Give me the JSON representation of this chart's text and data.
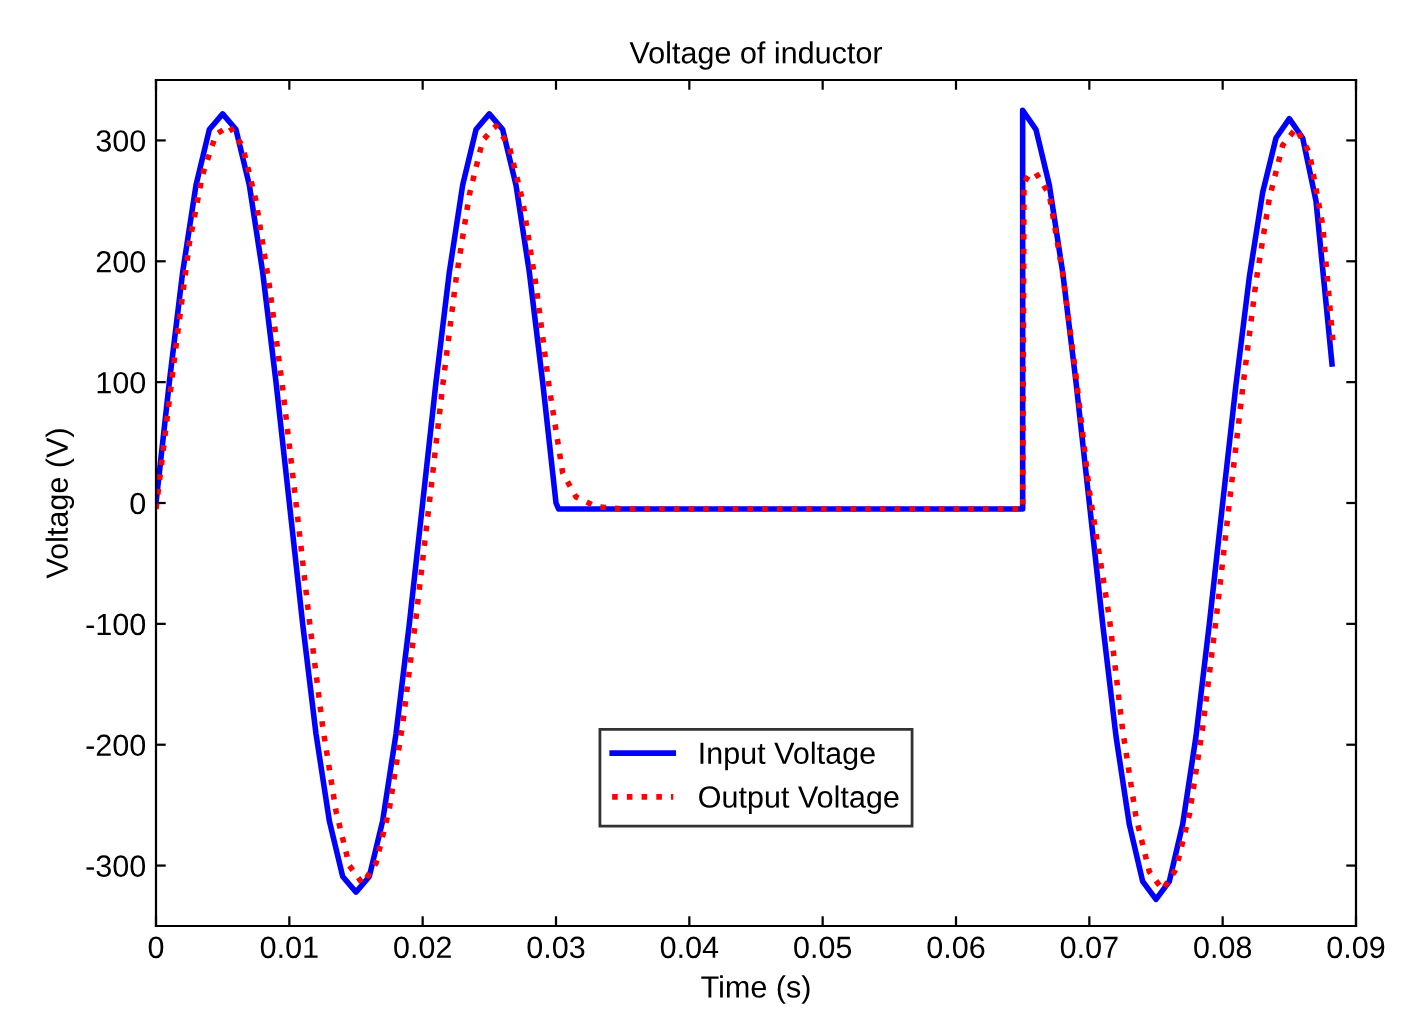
{
  "chart_data": {
    "type": "line",
    "title": "Voltage of inductor",
    "xlabel": "Time (s)",
    "ylabel": "Voltage (V)",
    "xlim": [
      0,
      0.09
    ],
    "ylim": [
      -350,
      350
    ],
    "xticks": [
      0,
      0.01,
      0.02,
      0.03,
      0.04,
      0.05,
      0.06,
      0.07,
      0.08,
      0.09
    ],
    "yticks": [
      -300,
      -200,
      -100,
      0,
      100,
      200,
      300
    ],
    "grid": false,
    "legend": "bottom",
    "series": [
      {
        "name": "Input Voltage",
        "color": "#0000ff",
        "line_style": "solid",
        "x": [
          0,
          0.001,
          0.002,
          0.003,
          0.004,
          0.005,
          0.006,
          0.007,
          0.008,
          0.009,
          0.01,
          0.011,
          0.012,
          0.013,
          0.014,
          0.015,
          0.016,
          0.017,
          0.018,
          0.019,
          0.02,
          0.021,
          0.022,
          0.023,
          0.024,
          0.025,
          0.026,
          0.027,
          0.028,
          0.029,
          0.03,
          0.0302,
          0.065,
          0.065,
          0.066,
          0.067,
          0.068,
          0.069,
          0.07,
          0.071,
          0.072,
          0.073,
          0.074,
          0.075,
          0.076,
          0.077,
          0.078,
          0.079,
          0.08,
          0.081,
          0.082,
          0.083,
          0.084,
          0.085,
          0.086,
          0.087,
          0.0882
        ],
        "values": [
          0,
          100,
          191,
          263,
          309,
          322,
          309,
          263,
          191,
          100,
          0,
          -100,
          -191,
          -263,
          -309,
          -322,
          -309,
          -263,
          -191,
          -100,
          0,
          100,
          191,
          263,
          309,
          322,
          309,
          263,
          191,
          100,
          0,
          -5,
          -5,
          325,
          309,
          263,
          191,
          100,
          0,
          -100,
          -193,
          -266,
          -313,
          -328,
          -313,
          -266,
          -193,
          -100,
          0,
          98,
          187,
          257,
          302,
          318,
          302,
          250,
          115
        ]
      },
      {
        "name": "Output Voltage",
        "color": "#ff0000",
        "line_style": "dotted",
        "x": [
          0,
          0.0015,
          0.0025,
          0.0035,
          0.0045,
          0.0055,
          0.0065,
          0.0075,
          0.0085,
          0.0095,
          0.0105,
          0.0115,
          0.0125,
          0.0135,
          0.0145,
          0.0155,
          0.0165,
          0.0175,
          0.0185,
          0.0195,
          0.0205,
          0.0215,
          0.0225,
          0.0235,
          0.0245,
          0.0255,
          0.0265,
          0.0275,
          0.0285,
          0.0295,
          0.0305,
          0.0315,
          0.033,
          0.035,
          0.065,
          0.0651,
          0.0655,
          0.066,
          0.067,
          0.068,
          0.069,
          0.07,
          0.0715,
          0.0725,
          0.0735,
          0.0745,
          0.0755,
          0.0765,
          0.0775,
          0.0785,
          0.0795,
          0.0805,
          0.0815,
          0.0825,
          0.0835,
          0.0845,
          0.0855,
          0.0865,
          0.0875,
          0.0883
        ],
        "values": [
          -5,
          130,
          215,
          272,
          305,
          312,
          295,
          250,
          180,
          95,
          0,
          -97,
          -185,
          -255,
          -300,
          -315,
          -298,
          -253,
          -183,
          -95,
          0,
          97,
          185,
          255,
          300,
          312,
          295,
          250,
          180,
          95,
          25,
          5,
          -3,
          -5,
          -5,
          265,
          272,
          273,
          255,
          190,
          105,
          10,
          -95,
          -188,
          -260,
          -305,
          -320,
          -303,
          -258,
          -186,
          -97,
          0,
          95,
          183,
          252,
          296,
          310,
          290,
          230,
          130
        ]
      }
    ]
  }
}
